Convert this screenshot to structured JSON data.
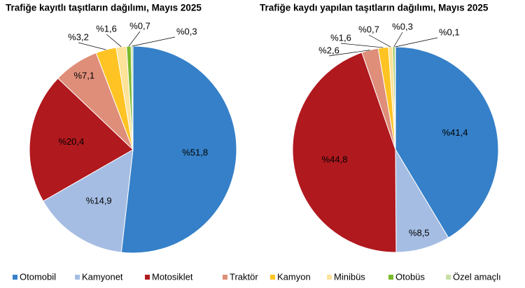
{
  "chart_data": [
    {
      "type": "pie",
      "title": "Trafiğe kayıtlı taşıtların dağılımı, Mayıs 2025",
      "categories": [
        "Otomobil",
        "Kamyonet",
        "Motosiklet",
        "Traktör",
        "Kamyon",
        "Minibüs",
        "Otobüs",
        "Özel amaçlı"
      ],
      "values": [
        51.8,
        14.9,
        20.4,
        7.1,
        3.2,
        1.6,
        0.7,
        0.3
      ],
      "value_labels": [
        "%51,8",
        "%14,9",
        "%20,4",
        "%7,1",
        "%3,2",
        "%1,6",
        "%0,7",
        "%0,3"
      ],
      "colors": [
        "#3580c8",
        "#a6bde3",
        "#b0191e",
        "#df8e7a",
        "#ffc423",
        "#fde29a",
        "#7ab92b",
        "#c9dfa6"
      ]
    },
    {
      "type": "pie",
      "title": "Trafiğe kaydı yapılan taşıtların dağılımı, Mayıs 2025",
      "categories": [
        "Otomobil",
        "Kamyonet",
        "Motosiklet",
        "Traktör",
        "Kamyon",
        "Minibüs",
        "Otobüs",
        "Özel amaçlı"
      ],
      "values": [
        41.4,
        8.5,
        44.8,
        2.6,
        1.6,
        0.7,
        0.3,
        0.1
      ],
      "value_labels": [
        "%41,4",
        "%8,5",
        "%44,8",
        "%2,6",
        "%1,6",
        "%0,7",
        "%0,3",
        "%0,1"
      ],
      "colors": [
        "#3580c8",
        "#a6bde3",
        "#b0191e",
        "#df8e7a",
        "#ffc423",
        "#fde29a",
        "#7ab92b",
        "#c9dfa6"
      ]
    }
  ]
}
